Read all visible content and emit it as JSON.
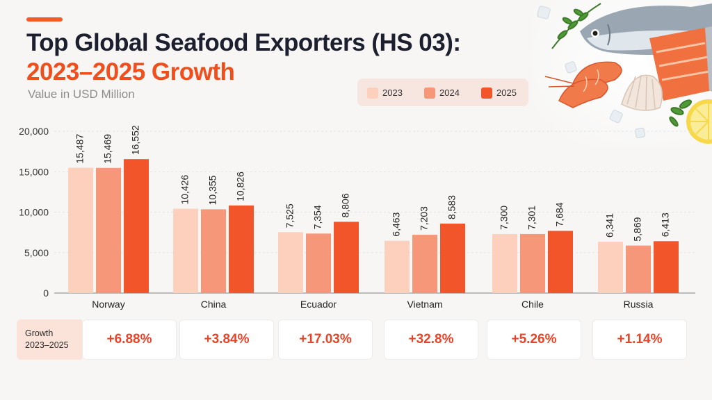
{
  "header": {
    "title_line1": "Top Global Seafood Exporters (HS 03):",
    "title_line2": "2023–2025 Growth",
    "subtitle": "Value in USD Million"
  },
  "colors": {
    "series_2023": "#fcd0bd",
    "series_2024": "#f7977a",
    "series_2025": "#f2552a",
    "title_dark": "#1b1f2e",
    "title_accent": "#f04e1c",
    "growth_text": "#e8442a"
  },
  "chart_data": {
    "type": "bar",
    "title": "Top Global Seafood Exporters (HS 03): 2023–2025 Growth",
    "subtitle": "Value in USD Million",
    "categories": [
      "Norway",
      "China",
      "Ecuador",
      "Vietnam",
      "Chile",
      "Russia"
    ],
    "series": [
      {
        "name": "2023",
        "values": [
          15487,
          10426,
          7525,
          6463,
          7300,
          6341
        ]
      },
      {
        "name": "2024",
        "values": [
          15469,
          10355,
          7354,
          7203,
          7301,
          5869
        ]
      },
      {
        "name": "2025",
        "values": [
          16552,
          10826,
          8806,
          8583,
          7684,
          6413
        ]
      }
    ],
    "data_labels": [
      [
        "15,487",
        "10,426",
        "7,525",
        "6,463",
        "7,300",
        "6,341"
      ],
      [
        "15,469",
        "10,355",
        "7,354",
        "7,203",
        "7,301",
        "5,869"
      ],
      [
        "16,552",
        "10,826",
        "8,806",
        "8,583",
        "7,684",
        "6,413"
      ]
    ],
    "ylim": [
      0,
      20000
    ],
    "yticks": [
      "0",
      "5,000",
      "10,000",
      "15,000",
      "20,000"
    ],
    "ytick_values": [
      0,
      5000,
      10000,
      15000,
      20000
    ],
    "grid": true,
    "legend_position": "top-right"
  },
  "growth": {
    "label_line1": "Growth",
    "label_line2": "2023–2025",
    "values": [
      "+6.88%",
      "+3.84%",
      "+17.03%",
      "+32.8%",
      "+5.26%",
      "+1.14%"
    ]
  },
  "decoration": {
    "image_subject": "seafood-platter",
    "icons": [
      "fish-icon",
      "salmon-icon",
      "shrimp-icon",
      "shell-icon",
      "lemon-icon",
      "herb-icon"
    ]
  }
}
